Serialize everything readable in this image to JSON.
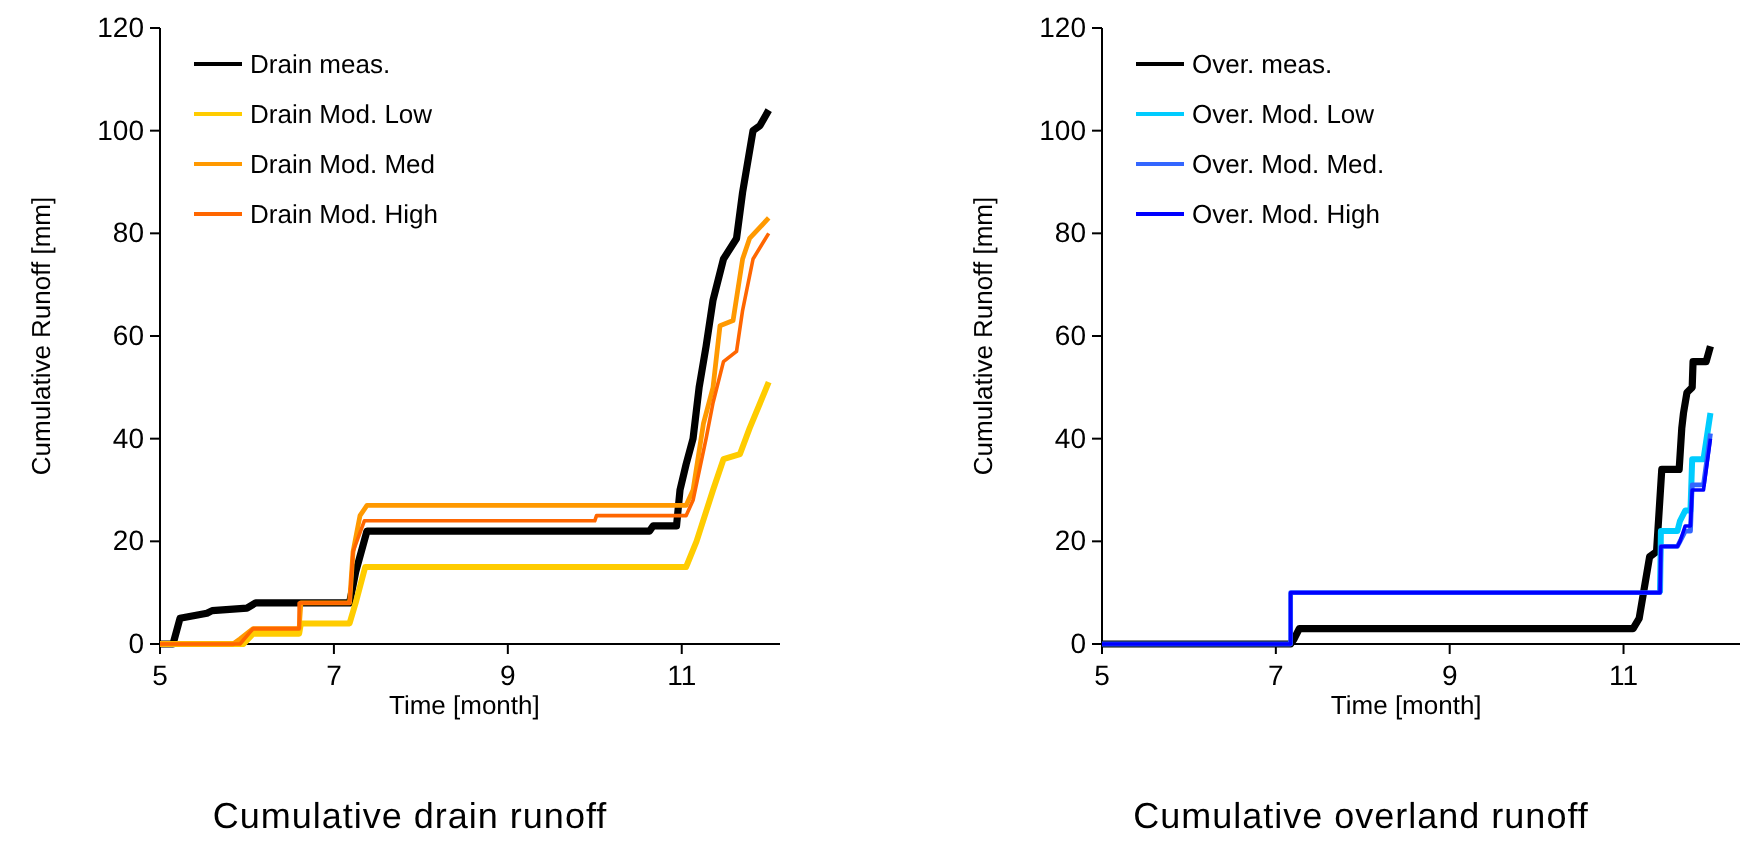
{
  "chart_data": [
    {
      "type": "line",
      "title": "Cumulative drain runoff",
      "xlabel": "Time [month]",
      "ylabel": "Cumulative Runoff [mm]",
      "xlim": [
        5,
        12.13
      ],
      "xticks": [
        5,
        7,
        9,
        11
      ],
      "ylim": [
        0,
        120
      ],
      "yticks": [
        0,
        20,
        40,
        60,
        80,
        100,
        120
      ],
      "grid": false,
      "legend": "top left",
      "series": [
        {
          "name": "Drain meas.",
          "color": "#000000",
          "x": [
            5,
            5.15,
            5.23,
            5.54,
            5.6,
            6.0,
            6.1,
            6.6,
            7.18,
            7.25,
            7.38,
            10.63,
            10.67,
            10.94,
            10.98,
            11.05,
            11.13,
            11.2,
            11.28,
            11.36,
            11.48,
            11.63,
            11.7,
            11.82,
            11.9,
            12.0
          ],
          "values": [
            0,
            0,
            5,
            6,
            6.5,
            7,
            8,
            8,
            8,
            14,
            22,
            22,
            23,
            23,
            30,
            35,
            40,
            50,
            58,
            67,
            75,
            79,
            88,
            100,
            101,
            104
          ]
        },
        {
          "name": "Drain Mod. Low",
          "color": "#ffcc00",
          "x": [
            5,
            5.96,
            6.07,
            6.6,
            6.62,
            7.18,
            7.25,
            7.36,
            11.05,
            11.17,
            11.36,
            11.48,
            11.67,
            11.78,
            12.0
          ],
          "values": [
            0,
            0,
            2,
            2,
            4,
            4,
            8,
            15,
            15,
            20,
            30,
            36,
            37,
            42,
            51
          ]
        },
        {
          "name": "Drain Mod. Med",
          "color": "#ff9900",
          "x": [
            5,
            5.84,
            5.92,
            6.07,
            6.6,
            6.62,
            7.18,
            7.22,
            7.3,
            7.38,
            11.05,
            11.13,
            11.25,
            11.36,
            11.44,
            11.59,
            11.7,
            11.78,
            12.0
          ],
          "values": [
            0,
            0,
            1,
            3,
            3,
            8,
            8,
            18,
            25,
            27,
            27,
            30,
            43,
            50,
            62,
            63,
            75,
            79,
            83
          ]
        },
        {
          "name": "Drain Mod. High",
          "color": "#ff6600",
          "x": [
            5,
            5.92,
            6.07,
            6.6,
            6.6,
            7.18,
            7.22,
            7.35,
            10.0,
            10.02,
            11.05,
            11.13,
            11.28,
            11.36,
            11.48,
            11.63,
            11.7,
            11.82,
            12.0
          ],
          "values": [
            0,
            0,
            3,
            3,
            8,
            8,
            18,
            24,
            24,
            25,
            25,
            28,
            40,
            47,
            55,
            57,
            65,
            75,
            80
          ]
        }
      ]
    },
    {
      "type": "line",
      "title": "Cumulative overland runoff",
      "xlabel": "Time [month]",
      "ylabel": "Cumulative Runoff [mm]",
      "xlim": [
        5,
        12.34
      ],
      "xticks": [
        5,
        7,
        9,
        11
      ],
      "ylim": [
        0,
        120
      ],
      "yticks": [
        0,
        20,
        40,
        60,
        80,
        100,
        120
      ],
      "grid": false,
      "legend": "top left",
      "series": [
        {
          "name": "Over. meas.",
          "color": "#000000",
          "x": [
            5,
            7.17,
            7.21,
            7.27,
            11.11,
            11.18,
            11.23,
            11.3,
            11.38,
            11.44,
            11.64,
            11.67,
            11.69,
            11.73,
            11.79,
            11.8,
            11.95,
            12.0
          ],
          "values": [
            0,
            0,
            1,
            3,
            3,
            5,
            10,
            17,
            18,
            34,
            34,
            42,
            45,
            49,
            50,
            55,
            55,
            58
          ]
        },
        {
          "name": "Over. Mod. Low",
          "color": "#00ccff",
          "x": [
            11.42,
            11.43,
            11.62,
            11.65,
            11.71,
            11.77,
            11.79,
            11.92,
            12.0
          ],
          "values": [
            10,
            22,
            22,
            24,
            26,
            26,
            36,
            36,
            45
          ]
        },
        {
          "name": "Over. Mod. Med.",
          "color": "#3366ff",
          "x": [
            5,
            7.17,
            7.17,
            11.42,
            11.43,
            11.62,
            11.65,
            11.71,
            11.77,
            11.79,
            11.92,
            12.0
          ],
          "values": [
            0,
            0,
            10,
            10,
            19,
            19,
            20,
            22,
            22,
            31,
            31,
            41
          ]
        },
        {
          "name": "Over. Mod. High",
          "color": "#0000ff",
          "x": [
            5,
            7.17,
            7.17,
            11.42,
            11.43,
            11.62,
            11.65,
            11.71,
            11.77,
            11.79,
            11.92,
            12.0
          ],
          "values": [
            0,
            0,
            10,
            10,
            19,
            19,
            20,
            23,
            23,
            30,
            30,
            40
          ]
        }
      ]
    }
  ]
}
